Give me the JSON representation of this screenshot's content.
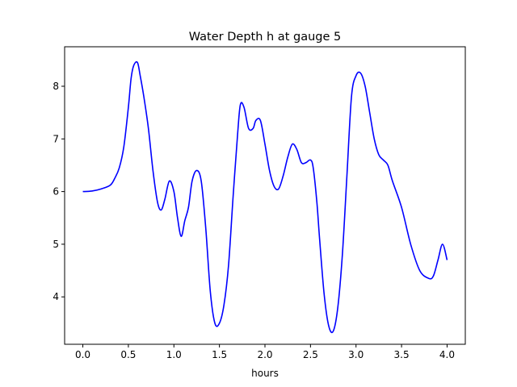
{
  "chart_data": {
    "type": "line",
    "title": "Water Depth h at gauge 5",
    "xlabel": "hours",
    "ylabel": "",
    "xlim": [
      -0.2,
      4.2
    ],
    "ylim": [
      3.1,
      8.75
    ],
    "xticks": [
      0.0,
      0.5,
      1.0,
      1.5,
      2.0,
      2.5,
      3.0,
      3.5,
      4.0
    ],
    "xtick_labels": [
      "0.0",
      "0.5",
      "1.0",
      "1.5",
      "2.0",
      "2.5",
      "3.0",
      "3.5",
      "4.0"
    ],
    "yticks": [
      4,
      5,
      6,
      7,
      8
    ],
    "ytick_labels": [
      "4",
      "5",
      "6",
      "7",
      "8"
    ],
    "grid": false,
    "legend": "none",
    "series": [
      {
        "color": "#0000ff",
        "x": [
          0.0,
          0.1,
          0.2,
          0.3,
          0.35,
          0.4,
          0.45,
          0.5,
          0.53,
          0.56,
          0.6,
          0.63,
          0.67,
          0.72,
          0.77,
          0.82,
          0.86,
          0.9,
          0.95,
          1.0,
          1.04,
          1.08,
          1.12,
          1.16,
          1.2,
          1.25,
          1.3,
          1.35,
          1.4,
          1.45,
          1.5,
          1.55,
          1.6,
          1.65,
          1.7,
          1.73,
          1.77,
          1.82,
          1.87,
          1.9,
          1.95,
          2.0,
          2.05,
          2.1,
          2.15,
          2.2,
          2.25,
          2.3,
          2.35,
          2.4,
          2.45,
          2.5,
          2.53,
          2.57,
          2.6,
          2.65,
          2.7,
          2.75,
          2.8,
          2.85,
          2.9,
          2.95,
          3.0,
          3.05,
          3.1,
          3.15,
          3.2,
          3.25,
          3.3,
          3.35,
          3.4,
          3.5,
          3.6,
          3.7,
          3.8,
          3.85,
          3.9,
          3.95,
          4.0
        ],
        "y": [
          6.0,
          6.01,
          6.05,
          6.12,
          6.25,
          6.45,
          6.85,
          7.6,
          8.15,
          8.4,
          8.45,
          8.2,
          7.8,
          7.2,
          6.4,
          5.8,
          5.65,
          5.85,
          6.2,
          6.0,
          5.5,
          5.15,
          5.45,
          5.7,
          6.2,
          6.4,
          6.2,
          5.3,
          4.1,
          3.5,
          3.5,
          3.85,
          4.6,
          5.9,
          7.1,
          7.65,
          7.6,
          7.2,
          7.2,
          7.35,
          7.35,
          6.9,
          6.4,
          6.1,
          6.05,
          6.3,
          6.65,
          6.9,
          6.8,
          6.55,
          6.55,
          6.6,
          6.45,
          5.8,
          5.1,
          4.05,
          3.45,
          3.35,
          3.8,
          4.8,
          6.3,
          7.8,
          8.2,
          8.25,
          8.0,
          7.5,
          7.0,
          6.7,
          6.6,
          6.5,
          6.2,
          5.7,
          5.0,
          4.5,
          4.35,
          4.4,
          4.7,
          5.0,
          4.7
        ]
      }
    ]
  }
}
